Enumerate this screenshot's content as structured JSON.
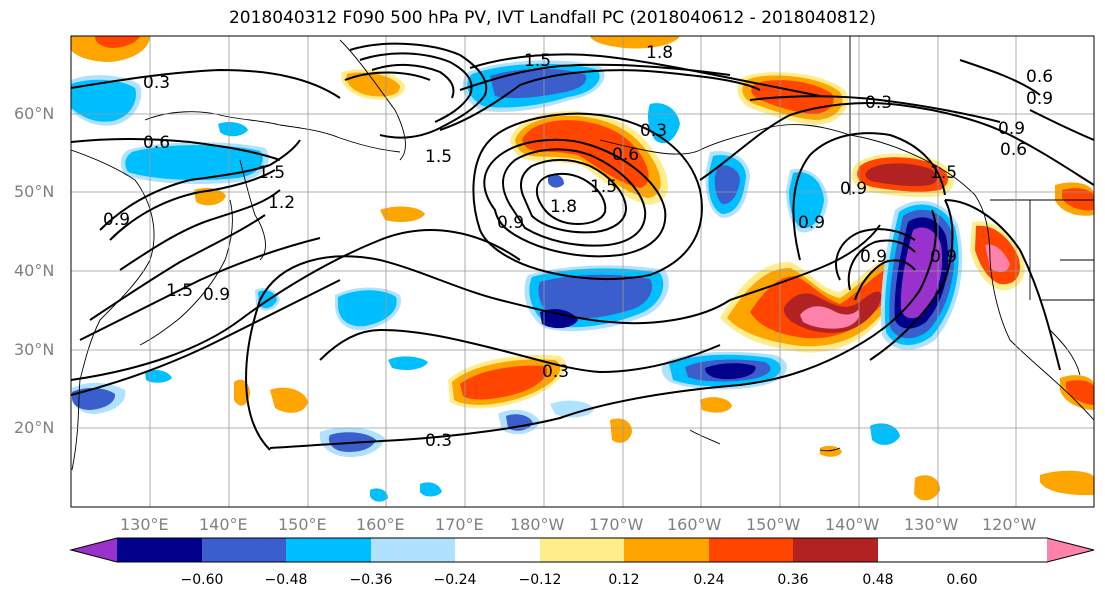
{
  "title": "2018040312 F090 500 hPa PV, IVT Landfall PC (2018040612 - 2018040812)",
  "lat_labels": [
    "60°N",
    "50°N",
    "40°N",
    "30°N",
    "20°N"
  ],
  "lon_labels": [
    "130°E",
    "140°E",
    "150°E",
    "160°E",
    "170°E",
    "180°W",
    "170°W",
    "160°W",
    "150°W",
    "140°W",
    "130°W",
    "120°W"
  ],
  "colorbar": {
    "colors": [
      "#9932cc",
      "#00008b",
      "#3a5fcd",
      "#00bfff",
      "#b0e2ff",
      "#ffffff",
      "#ffec8b",
      "#ffa500",
      "#ff4500",
      "#b22222",
      "#ff82ab"
    ],
    "tick_labels": [
      "−0.60",
      "−0.48",
      "−0.36",
      "−0.24",
      "−0.12",
      "0.12",
      "0.24",
      "0.36",
      "0.48",
      "0.60"
    ]
  },
  "contour_labels": [
    "0.3",
    "1.5",
    "1.8",
    "0.6",
    "1.5",
    "1.2",
    "0.9",
    "1.5",
    "0.9",
    "0.3",
    "1.5",
    "1.8",
    "0.9",
    "0.6",
    "1.5",
    "0.9",
    "0.3",
    "0.6",
    "0.9",
    "0.6",
    "0.9",
    "0.9",
    "0.3",
    "0.3",
    "0.9",
    "0.9",
    "1.5"
  ]
}
